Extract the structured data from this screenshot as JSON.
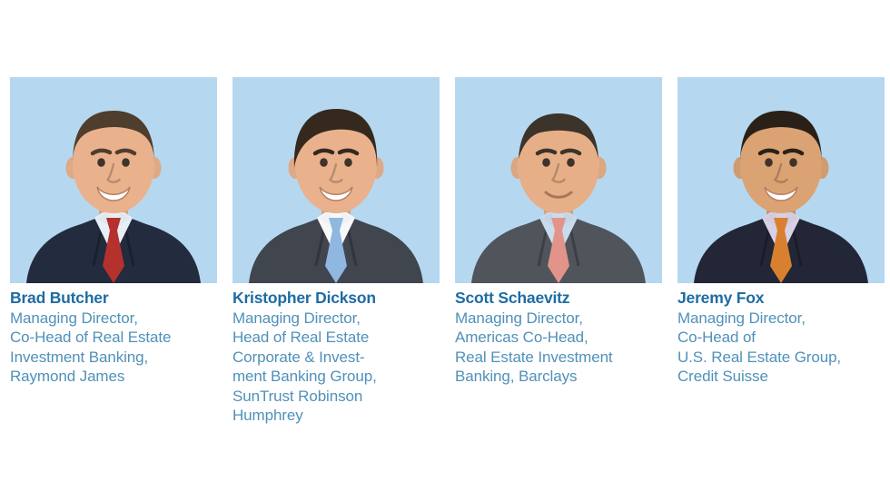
{
  "page": {
    "background": "#ffffff",
    "description": "Four executive headshot cards with names and titles"
  },
  "colors": {
    "name_text": "#1e6ca3",
    "title_text": "#4f91b9",
    "photo_background": "#b5d8f0"
  },
  "people": [
    {
      "name": "Brad Butcher",
      "title": "Managing Director,\nCo-Head of Real Estate\nInvestment Banking,\nRaymond James",
      "photo": {
        "semantic": "headshot-photo",
        "background": "#b5d8f0",
        "hair": "#4f3d2e",
        "skin": "#eab28c",
        "suit": "#232b3e",
        "shirt": "#e8eef6",
        "tie": "#b5312d",
        "hair_style": "short",
        "smile": "open"
      }
    },
    {
      "name": "Kristopher Dickson",
      "title": "Managing Director,\nHead of Real Estate\nCorporate & Invest-\nment Banking Group,\nSunTrust Robinson\nHumphrey",
      "photo": {
        "semantic": "headshot-photo",
        "background": "#b5d8f0",
        "hair": "#35291e",
        "skin": "#eab28c",
        "suit": "#41454e",
        "shirt": "#f7f8fa",
        "tie": "#8fb7e0",
        "hair_style": "full",
        "smile": "open"
      }
    },
    {
      "name": "Scott Schaevitz",
      "title": "Managing Director,\nAmericas Co-Head,\nReal Estate Investment\nBanking, Barclays",
      "photo": {
        "semantic": "headshot-photo",
        "background": "#b5d8f0",
        "hair": "#3c332a",
        "skin": "#e7af88",
        "suit": "#50555c",
        "shirt": "#c9dcee",
        "tie": "#e2948a",
        "hair_style": "receding",
        "smile": "closed"
      }
    },
    {
      "name": "Jeremy Fox",
      "title": "Managing Director,\nCo-Head of\nU.S. Real Estate Group,\nCredit Suisse",
      "photo": {
        "semantic": "headshot-photo",
        "background": "#b5d8f0",
        "hair": "#2a2018",
        "skin": "#dba374",
        "suit": "#222636",
        "shirt": "#d8d0e4",
        "tie": "#d8802f",
        "hair_style": "short",
        "smile": "open"
      }
    }
  ]
}
